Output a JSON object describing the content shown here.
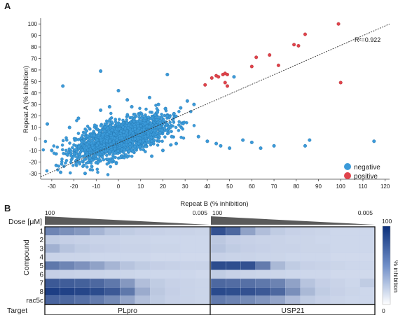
{
  "panel_a": {
    "label": "A",
    "chart_data": {
      "type": "scatter",
      "xlabel": "Repeat B (% inhibition)",
      "ylabel": "Repeat A (% inhibition)",
      "xlim": [
        -35,
        122
      ],
      "ylim": [
        -35,
        105
      ],
      "x_ticks": [
        "-30",
        "-20",
        "-10",
        "0",
        "10",
        "20",
        "30",
        "40",
        "50",
        "60",
        "70",
        "80",
        "90",
        "100",
        "110",
        "120"
      ],
      "y_ticks": [
        "-30",
        "-20",
        "-10",
        "0",
        "10",
        "20",
        "30",
        "40",
        "50",
        "60",
        "70",
        "80",
        "90",
        "100"
      ],
      "grid": false,
      "annotation": "R²=0.922",
      "fit_line": {
        "x": [
          -35,
          122
        ],
        "y": [
          -33,
          100
        ]
      },
      "legend": {
        "placement": "bottom-right",
        "entries": [
          {
            "name": "negative",
            "color": "#3b9ad9"
          },
          {
            "name": "positive",
            "color": "#e0434b"
          }
        ]
      },
      "cluster": {
        "center_x": 1,
        "center_y": 1,
        "spread_x": 10,
        "spread_y": 9,
        "correlation": 0.6,
        "count": 2200,
        "series": "negative"
      },
      "series": [
        {
          "name": "negative",
          "color": "#3b9ad9",
          "points": [
            [
              -25,
              46
            ],
            [
              -8,
              59
            ],
            [
              22,
              56
            ],
            [
              52,
              54
            ],
            [
              31,
              33
            ],
            [
              34,
              30
            ],
            [
              28,
              27
            ],
            [
              36,
              2
            ],
            [
              40,
              -2
            ],
            [
              44,
              -4
            ],
            [
              46,
              -6
            ],
            [
              50,
              -8
            ],
            [
              56,
              -1
            ],
            [
              60,
              -3
            ],
            [
              64,
              -8
            ],
            [
              70,
              -6
            ],
            [
              84,
              -6
            ],
            [
              86,
              -1
            ],
            [
              115,
              -2
            ],
            [
              -32,
              13
            ],
            [
              -30,
              -10
            ],
            [
              -28,
              -23
            ],
            [
              -26,
              -29
            ],
            [
              -15,
              -30
            ],
            [
              -8,
              25
            ],
            [
              -4,
              28
            ],
            [
              0,
              42
            ],
            [
              4,
              34
            ],
            [
              6,
              28
            ],
            [
              14,
              36
            ],
            [
              18,
              30
            ],
            [
              22,
              20
            ],
            [
              25,
              22
            ],
            [
              20,
              -10
            ],
            [
              15,
              -15
            ],
            [
              24,
              2
            ],
            [
              26,
              -4
            ],
            [
              -18,
              18
            ],
            [
              -22,
              10
            ],
            [
              -12,
              -24
            ]
          ]
        },
        {
          "name": "positive",
          "color": "#e0434b",
          "points": [
            [
              39,
              47
            ],
            [
              42,
              53
            ],
            [
              44,
              55
            ],
            [
              45,
              54
            ],
            [
              47,
              56
            ],
            [
              48,
              57
            ],
            [
              49,
              56
            ],
            [
              48,
              49
            ],
            [
              49,
              46
            ],
            [
              60,
              63
            ],
            [
              62,
              71
            ],
            [
              68,
              73
            ],
            [
              72,
              64
            ],
            [
              79,
              82
            ],
            [
              81,
              81
            ],
            [
              84,
              91
            ],
            [
              99,
              100
            ],
            [
              100,
              49
            ]
          ]
        }
      ]
    }
  },
  "panel_b": {
    "label": "B",
    "dose_label": "Dose [μM]",
    "dose_high": "100",
    "dose_low": "0.005",
    "y_title": "Compound",
    "target_label": "Target",
    "colorbar": {
      "max_label": "100",
      "min_label": "0",
      "title": "% inhibition"
    },
    "chart_data": {
      "type": "heatmap",
      "rows": [
        "1",
        "2",
        "3",
        "4",
        "5",
        "6",
        "7",
        "8",
        "rac5c"
      ],
      "targets": [
        "PLpro",
        "USP21"
      ],
      "columns_per_target": 11,
      "value_range": [
        0,
        100
      ],
      "values": {
        "PLpro": [
          [
            55,
            50,
            45,
            30,
            22,
            18,
            16,
            15,
            14,
            14,
            13
          ],
          [
            18,
            16,
            15,
            14,
            14,
            13,
            13,
            12,
            12,
            12,
            12
          ],
          [
            32,
            22,
            18,
            16,
            15,
            14,
            14,
            13,
            13,
            12,
            12
          ],
          [
            14,
            13,
            13,
            12,
            12,
            12,
            12,
            11,
            11,
            11,
            11
          ],
          [
            62,
            55,
            48,
            40,
            30,
            22,
            18,
            16,
            15,
            14,
            14
          ],
          [
            16,
            15,
            14,
            14,
            13,
            13,
            12,
            12,
            12,
            12,
            11
          ],
          [
            78,
            76,
            74,
            70,
            62,
            45,
            25,
            18,
            15,
            14,
            13
          ],
          [
            92,
            90,
            88,
            85,
            78,
            62,
            35,
            20,
            16,
            14,
            13
          ],
          [
            72,
            70,
            66,
            60,
            52,
            38,
            24,
            18,
            15,
            14,
            13
          ]
        ],
        "USP21": [
          [
            82,
            70,
            40,
            25,
            18,
            15,
            14,
            13,
            12,
            12,
            12
          ],
          [
            20,
            16,
            15,
            14,
            14,
            13,
            13,
            12,
            12,
            12,
            12
          ],
          [
            22,
            18,
            16,
            15,
            14,
            14,
            13,
            13,
            12,
            12,
            12
          ],
          [
            15,
            14,
            14,
            13,
            13,
            12,
            12,
            12,
            11,
            11,
            11
          ],
          [
            85,
            84,
            82,
            60,
            28,
            18,
            15,
            14,
            13,
            12,
            12
          ],
          [
            18,
            15,
            14,
            13,
            13,
            12,
            12,
            12,
            11,
            11,
            11
          ],
          [
            70,
            68,
            66,
            62,
            56,
            40,
            22,
            16,
            14,
            12,
            18
          ],
          [
            86,
            84,
            82,
            78,
            70,
            50,
            28,
            18,
            15,
            13,
            12
          ],
          [
            60,
            56,
            52,
            46,
            38,
            26,
            18,
            15,
            13,
            12,
            12
          ]
        ]
      }
    }
  }
}
